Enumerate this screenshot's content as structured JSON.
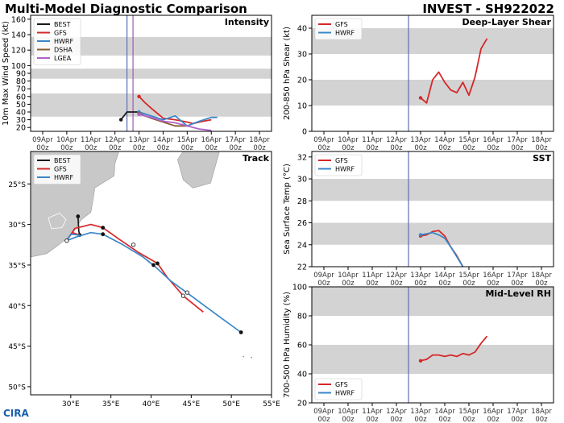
{
  "header": {
    "left_title": "Multi-Model Diagnostic Comparison",
    "right_title": "INVEST - SH922022"
  },
  "logo_text": "CIRA",
  "colors": {
    "BEST": "#1a1a1a",
    "GFS": "#d62728",
    "HWRF": "#3a86c8",
    "DSHA": "#8b5a2b",
    "LGEA": "#b061c8",
    "band": "#d3d3d3",
    "vline_init": "#5b6fb3",
    "vline_purple": "#9b59b6",
    "land": "#c8c8c8"
  },
  "chart_data": [
    {
      "id": "intensity",
      "type": "line",
      "panel_title": "Intensity",
      "ylabel": "10m Max Wind Speed (kt)",
      "ylim": [
        15,
        165
      ],
      "yticks": [
        20,
        30,
        40,
        50,
        60,
        70,
        80,
        90,
        100,
        120,
        140,
        160
      ],
      "xticks": [
        "09Apr\n00z",
        "10Apr\n00z",
        "11Apr\n00z",
        "12Apr\n00z",
        "13Apr\n00z",
        "14Apr\n00z",
        "15Apr\n00z",
        "16Apr\n00z",
        "17Apr\n00z",
        "18Apr\n00z"
      ],
      "xlim": [
        0,
        10
      ],
      "vlines": [
        {
          "x": 4.0,
          "color": "vline_init"
        },
        {
          "x": 4.25,
          "color": "vline_purple"
        }
      ],
      "bands": [
        [
          34,
          64
        ],
        [
          83,
          96
        ],
        [
          113,
          137
        ]
      ],
      "legend": [
        "BEST",
        "GFS",
        "HWRF",
        "DSHA",
        "LGEA"
      ],
      "series": [
        {
          "name": "BEST",
          "x": [
            3.25,
            3.5,
            4.0
          ],
          "y": [
            30,
            40,
            40
          ]
        },
        {
          "name": "GFS",
          "x": [
            4.0,
            4.25,
            4.5,
            5.0,
            5.5,
            6.0,
            6.25,
            6.5,
            7.0
          ],
          "y": [
            60,
            52,
            45,
            32,
            30,
            27,
            25,
            27,
            30
          ]
        },
        {
          "name": "HWRF",
          "x": [
            4.0,
            4.5,
            5.0,
            5.5,
            6.0,
            6.25,
            6.5,
            7.0,
            7.25
          ],
          "y": [
            40,
            35,
            30,
            35,
            22,
            25,
            28,
            33,
            33
          ]
        },
        {
          "name": "DSHA",
          "x": [
            4.0,
            4.5,
            5.0,
            5.5,
            6.0
          ],
          "y": [
            38,
            32,
            27,
            22,
            22
          ]
        },
        {
          "name": "LGEA",
          "x": [
            4.0,
            4.5,
            5.0,
            5.5,
            6.0,
            6.5,
            7.0
          ],
          "y": [
            37,
            33,
            28,
            26,
            22,
            18,
            16
          ]
        }
      ]
    },
    {
      "id": "shear",
      "type": "line",
      "panel_title": "Deep-Layer Shear",
      "ylabel": "200-850 hPa Shear (kt)",
      "ylim": [
        0,
        45
      ],
      "yticks": [
        0,
        10,
        20,
        30,
        40
      ],
      "xticks": [
        "09Apr\n00z",
        "10Apr\n00z",
        "11Apr\n00z",
        "12Apr\n00z",
        "13Apr\n00z",
        "14Apr\n00z",
        "15Apr\n00z",
        "16Apr\n00z",
        "17Apr\n00z",
        "18Apr\n00z"
      ],
      "xlim": [
        0,
        10
      ],
      "vlines": [
        {
          "x": 4.0,
          "color": "vline_init"
        }
      ],
      "bands": [
        [
          10,
          20
        ],
        [
          30,
          40
        ]
      ],
      "legend": [
        "GFS",
        "HWRF"
      ],
      "series": [
        {
          "name": "GFS",
          "x": [
            4.0,
            4.25,
            4.5,
            4.75,
            5.0,
            5.25,
            5.5,
            5.75,
            6.0,
            6.25,
            6.5,
            6.75,
            7.0
          ],
          "y": [
            13,
            11,
            20,
            23,
            19,
            16,
            15,
            19,
            14,
            21,
            32,
            36,
            null
          ]
        }
      ]
    },
    {
      "id": "sst",
      "type": "line",
      "panel_title": "SST",
      "ylabel": "Sea Surface Temp (°C)",
      "ylim": [
        22,
        32.5
      ],
      "yticks": [
        22,
        24,
        26,
        28,
        30,
        32
      ],
      "xticks": [
        "09Apr\n00z",
        "10Apr\n00z",
        "11Apr\n00z",
        "12Apr\n00z",
        "13Apr\n00z",
        "14Apr\n00z",
        "15Apr\n00z",
        "16Apr\n00z",
        "17Apr\n00z",
        "18Apr\n00z"
      ],
      "xlim": [
        0,
        10
      ],
      "vlines": [
        {
          "x": 4.0,
          "color": "vline_init"
        }
      ],
      "bands": [
        [
          24,
          26
        ],
        [
          28,
          30
        ]
      ],
      "legend": [
        "GFS",
        "HWRF"
      ],
      "series": [
        {
          "name": "GFS",
          "x": [
            4.0,
            4.25,
            4.5,
            4.75,
            5.0,
            5.25,
            5.5,
            5.75
          ],
          "y": [
            24.8,
            24.9,
            25.2,
            25.3,
            24.8,
            23.8,
            23.0,
            22.0
          ]
        },
        {
          "name": "HWRF",
          "x": [
            4.0,
            4.25,
            4.5,
            4.75,
            5.0,
            5.25,
            5.5,
            5.75
          ],
          "y": [
            24.9,
            25.0,
            25.1,
            24.9,
            24.6,
            23.8,
            22.9,
            22.0
          ]
        }
      ]
    },
    {
      "id": "rh",
      "type": "line",
      "panel_title": "Mid-Level RH",
      "ylabel": "700-500 hPa Humidity (%)",
      "ylim": [
        20,
        100
      ],
      "yticks": [
        20,
        40,
        60,
        80,
        100
      ],
      "xticks": [
        "09Apr\n00z",
        "10Apr\n00z",
        "11Apr\n00z",
        "12Apr\n00z",
        "13Apr\n00z",
        "14Apr\n00z",
        "15Apr\n00z",
        "16Apr\n00z",
        "17Apr\n00z",
        "18Apr\n00z"
      ],
      "xlim": [
        0,
        10
      ],
      "vlines": [
        {
          "x": 4.0,
          "color": "vline_init"
        }
      ],
      "bands": [
        [
          40,
          60
        ],
        [
          80,
          100
        ]
      ],
      "legend": [
        "GFS",
        "HWRF"
      ],
      "legend_loc": "bottom-left",
      "series": [
        {
          "name": "GFS",
          "x": [
            4.0,
            4.25,
            4.5,
            4.75,
            5.0,
            5.25,
            5.5,
            5.75,
            6.0,
            6.25,
            6.5,
            6.75,
            7.0
          ],
          "y": [
            49,
            50,
            53,
            53,
            52,
            53,
            52,
            54,
            53,
            55,
            61,
            66,
            null
          ]
        }
      ]
    },
    {
      "id": "track",
      "type": "scatter",
      "panel_title": "Track",
      "xlabel": "",
      "ylabel": "",
      "xlim": [
        25,
        55
      ],
      "ylim": [
        -51,
        -21
      ],
      "xticks": [
        "30°E",
        "35°E",
        "40°E",
        "45°E",
        "50°E",
        "55°E"
      ],
      "xtick_values": [
        30,
        35,
        40,
        45,
        50,
        55
      ],
      "yticks": [
        "25°S",
        "30°S",
        "35°S",
        "40°S",
        "45°S",
        "50°S"
      ],
      "ytick_values": [
        -25,
        -30,
        -35,
        -40,
        -45,
        -50
      ],
      "legend": [
        "BEST",
        "GFS",
        "HWRF"
      ],
      "series": [
        {
          "name": "BEST",
          "lon": [
            30.9,
            31.0,
            31.1
          ],
          "lat": [
            -29.0,
            -30.8,
            -31.3
          ],
          "markers": [
            [
              30.9,
              -29.0
            ],
            [
              31.1,
              -31.3
            ]
          ]
        },
        {
          "name": "GFS",
          "lon": [
            31.1,
            30.2,
            29.5,
            30.5,
            32.5,
            34.0,
            36.0,
            38.5,
            40.8,
            42.0,
            44.0,
            46.5
          ],
          "lat": [
            -31.3,
            -31.0,
            -32.0,
            -30.5,
            -30.0,
            -30.4,
            -31.8,
            -33.5,
            -34.8,
            -36.5,
            -38.8,
            -40.8
          ],
          "markers": [
            [
              34.0,
              -30.4
            ],
            [
              40.8,
              -34.8
            ]
          ],
          "open_markers": [
            [
              44.0,
              -38.8
            ]
          ]
        },
        {
          "name": "HWRF",
          "lon": [
            31.1,
            30.0,
            29.5,
            30.8,
            32.5,
            34.0,
            36.5,
            39.0,
            40.5,
            42.5,
            45.0,
            48.0,
            51.2
          ],
          "lat": [
            -31.3,
            -31.2,
            -32.0,
            -31.5,
            -31.0,
            -31.2,
            -32.5,
            -34.0,
            -35.2,
            -37.0,
            -38.8,
            -41.0,
            -43.3
          ],
          "markers": [
            [
              34.0,
              -31.2
            ],
            [
              40.3,
              -35.0
            ],
            [
              51.2,
              -43.3
            ]
          ],
          "open_markers": [
            [
              37.8,
              -32.5
            ],
            [
              44.5,
              -38.4
            ],
            [
              29.5,
              -32.0
            ]
          ]
        }
      ]
    }
  ]
}
